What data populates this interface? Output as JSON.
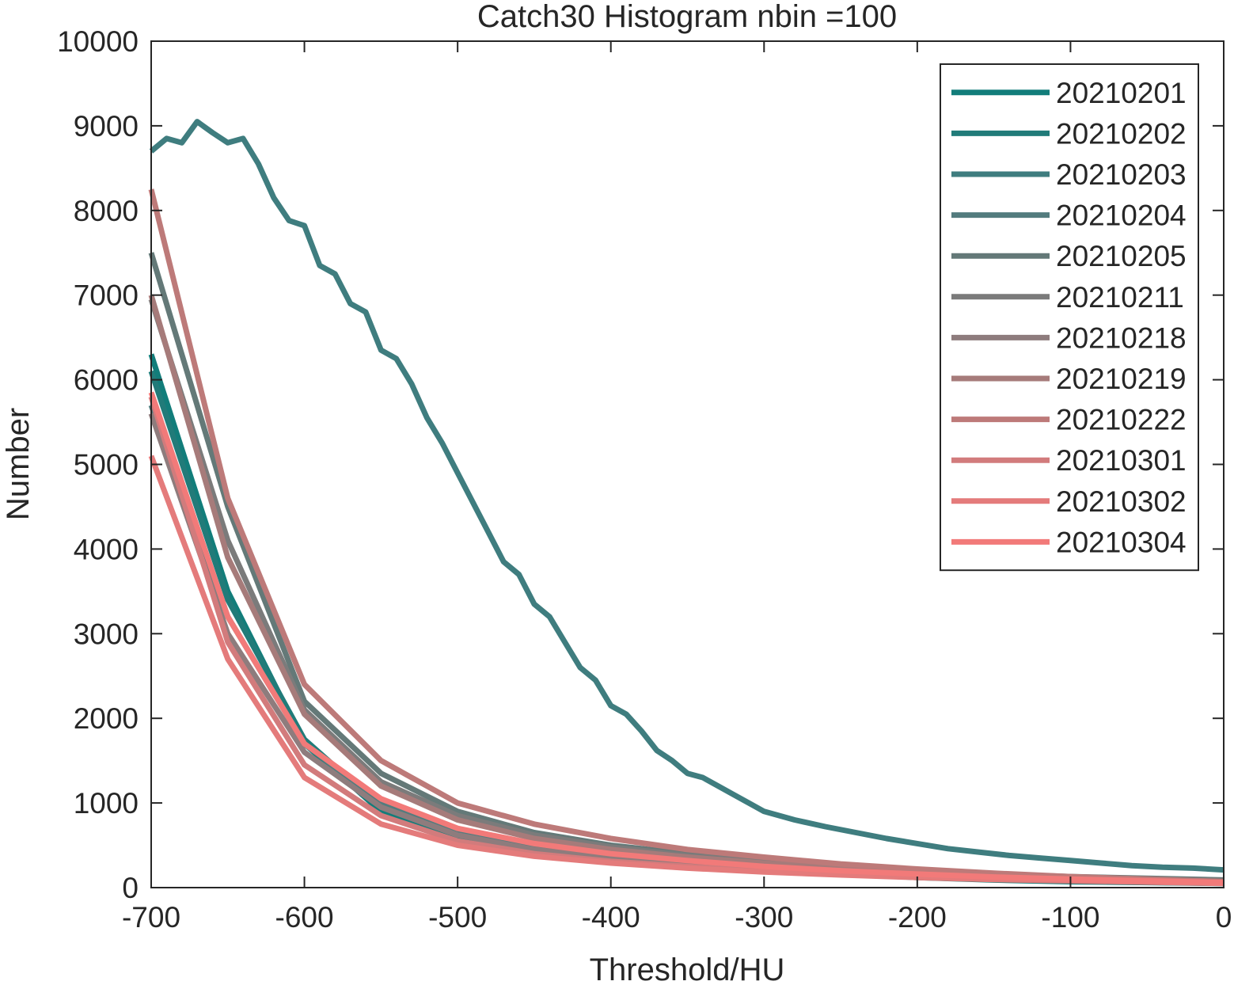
{
  "chart_data": {
    "type": "line",
    "title": "Catch30  Histogram nbin =100",
    "xlabel": "Threshold/HU",
    "ylabel": "Number",
    "xlim": [
      -700,
      0
    ],
    "ylim": [
      0,
      10000
    ],
    "xticks": [
      -700,
      -600,
      -500,
      -400,
      -300,
      -200,
      -100,
      0
    ],
    "xtick_labels": [
      "-700",
      "-600",
      "-500",
      "-400",
      "-300",
      "-200",
      "-100",
      "0"
    ],
    "yticks": [
      0,
      1000,
      2000,
      3000,
      4000,
      5000,
      6000,
      7000,
      8000,
      9000,
      10000
    ],
    "ytick_labels": [
      "0",
      "1000",
      "2000",
      "3000",
      "4000",
      "5000",
      "6000",
      "7000",
      "8000",
      "9000",
      "10000"
    ],
    "grid": false,
    "legend_position": "top-right",
    "series": [
      {
        "name": "20210201",
        "color": "#127d7a",
        "x": [
          -700,
          -650,
          -600,
          -550,
          -500,
          -450,
          -400,
          -350,
          -300,
          -250,
          -200,
          -150,
          -100,
          -50,
          0
        ],
        "y": [
          6300,
          3500,
          1700,
          900,
          550,
          400,
          320,
          260,
          200,
          160,
          120,
          90,
          70,
          60,
          50
        ]
      },
      {
        "name": "20210202",
        "color": "#217b79",
        "x": [
          -700,
          -650,
          -600,
          -550,
          -500,
          -450,
          -400,
          -350,
          -300,
          -250,
          -200,
          -150,
          -100,
          -50,
          0
        ],
        "y": [
          6100,
          3400,
          1750,
          950,
          600,
          430,
          340,
          270,
          210,
          165,
          125,
          95,
          75,
          62,
          52
        ]
      },
      {
        "name": "20210203",
        "color": "#3f7d7f",
        "x": [
          -700,
          -690,
          -680,
          -670,
          -660,
          -650,
          -640,
          -630,
          -620,
          -610,
          -600,
          -590,
          -580,
          -570,
          -560,
          -550,
          -540,
          -530,
          -520,
          -510,
          -500,
          -490,
          -480,
          -470,
          -460,
          -450,
          -440,
          -430,
          -420,
          -410,
          -400,
          -390,
          -380,
          -370,
          -360,
          -350,
          -340,
          -330,
          -320,
          -310,
          -300,
          -280,
          -260,
          -240,
          -220,
          -200,
          -180,
          -160,
          -140,
          -120,
          -100,
          -80,
          -60,
          -40,
          -20,
          0
        ],
        "y": [
          8700,
          8850,
          8800,
          9050,
          8920,
          8800,
          8850,
          8550,
          8150,
          7880,
          7820,
          7350,
          7250,
          6900,
          6800,
          6350,
          6250,
          5950,
          5550,
          5250,
          4900,
          4550,
          4200,
          3850,
          3700,
          3350,
          3200,
          2900,
          2600,
          2450,
          2150,
          2050,
          1850,
          1620,
          1500,
          1350,
          1300,
          1200,
          1100,
          1000,
          900,
          800,
          720,
          650,
          580,
          520,
          460,
          420,
          380,
          350,
          320,
          290,
          260,
          240,
          230,
          210
        ]
      },
      {
        "name": "20210204",
        "color": "#537c7e",
        "x": [
          -700,
          -650,
          -600,
          -550,
          -500,
          -450,
          -400,
          -350,
          -300,
          -250,
          -200,
          -150,
          -100,
          -50,
          0
        ],
        "y": [
          5700,
          3200,
          1700,
          1000,
          650,
          480,
          380,
          300,
          240,
          190,
          150,
          120,
          100,
          85,
          70
        ]
      },
      {
        "name": "20210205",
        "color": "#647978",
        "x": [
          -700,
          -650,
          -600,
          -550,
          -500,
          -450,
          -400,
          -350,
          -300,
          -250,
          -200,
          -150,
          -100,
          -50,
          0
        ],
        "y": [
          7500,
          4500,
          2200,
          1350,
          900,
          650,
          500,
          400,
          320,
          250,
          200,
          160,
          130,
          110,
          90
        ]
      },
      {
        "name": "20210211",
        "color": "#7b7b7b",
        "x": [
          -700,
          -650,
          -600,
          -550,
          -500,
          -450,
          -400,
          -350,
          -300,
          -250,
          -200,
          -150,
          -100,
          -50,
          0
        ],
        "y": [
          6950,
          4100,
          2100,
          1250,
          850,
          620,
          480,
          380,
          300,
          240,
          190,
          150,
          120,
          100,
          80
        ]
      },
      {
        "name": "20210218",
        "color": "#8e7c7d",
        "x": [
          -700,
          -650,
          -600,
          -550,
          -500,
          -450,
          -400,
          -350,
          -300,
          -250,
          -200,
          -150,
          -100,
          -50,
          0
        ],
        "y": [
          5600,
          3000,
          1600,
          950,
          620,
          450,
          350,
          280,
          220,
          175,
          140,
          110,
          90,
          75,
          60
        ]
      },
      {
        "name": "20210219",
        "color": "#a67b7a",
        "x": [
          -700,
          -650,
          -600,
          -550,
          -500,
          -450,
          -400,
          -350,
          -300,
          -250,
          -200,
          -150,
          -100,
          -50,
          0
        ],
        "y": [
          7000,
          3900,
          2050,
          1200,
          800,
          580,
          450,
          360,
          290,
          230,
          180,
          140,
          110,
          90,
          70
        ]
      },
      {
        "name": "20210222",
        "color": "#bd7a79",
        "x": [
          -700,
          -650,
          -600,
          -550,
          -500,
          -450,
          -400,
          -350,
          -300,
          -250,
          -200,
          -150,
          -100,
          -50,
          0
        ],
        "y": [
          8250,
          4600,
          2400,
          1500,
          1000,
          750,
          580,
          450,
          360,
          280,
          220,
          170,
          130,
          100,
          70
        ]
      },
      {
        "name": "20210301",
        "color": "#d27b7c",
        "x": [
          -700,
          -650,
          -600,
          -550,
          -500,
          -450,
          -400,
          -350,
          -300,
          -250,
          -200,
          -150,
          -100,
          -50,
          0
        ],
        "y": [
          5800,
          2900,
          1450,
          850,
          550,
          400,
          310,
          250,
          200,
          160,
          130,
          100,
          85,
          70,
          55
        ]
      },
      {
        "name": "20210302",
        "color": "#e47b7b",
        "x": [
          -700,
          -650,
          -600,
          -550,
          -500,
          -450,
          -400,
          -350,
          -300,
          -250,
          -200,
          -150,
          -100,
          -50,
          0
        ],
        "y": [
          5100,
          2700,
          1300,
          750,
          500,
          370,
          290,
          230,
          185,
          150,
          120,
          95,
          80,
          65,
          50
        ]
      },
      {
        "name": "20210304",
        "color": "#f27a79",
        "x": [
          -700,
          -650,
          -600,
          -550,
          -500,
          -450,
          -400,
          -350,
          -300,
          -250,
          -200,
          -150,
          -100,
          -50,
          0
        ],
        "y": [
          5850,
          3200,
          1700,
          1050,
          700,
          520,
          400,
          320,
          250,
          200,
          160,
          125,
          100,
          80,
          60
        ]
      }
    ]
  }
}
